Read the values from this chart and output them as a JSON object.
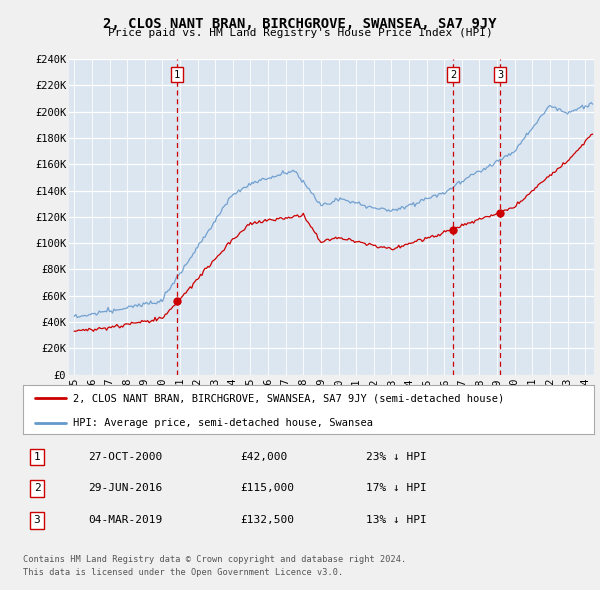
{
  "title": "2, CLOS NANT BRAN, BIRCHGROVE, SWANSEA, SA7 9JY",
  "subtitle": "Price paid vs. HM Land Registry's House Price Index (HPI)",
  "background_color": "#dce6f1",
  "grid_color": "#ffffff",
  "ylim": [
    0,
    240000
  ],
  "yticks": [
    0,
    20000,
    40000,
    60000,
    80000,
    100000,
    120000,
    140000,
    160000,
    180000,
    200000,
    220000,
    240000
  ],
  "xstart_year": 1995,
  "xend_year": 2024,
  "transactions": [
    {
      "label": "1",
      "year": 2000.82,
      "price": 42000
    },
    {
      "label": "2",
      "year": 2016.49,
      "price": 115000
    },
    {
      "label": "3",
      "year": 2019.17,
      "price": 132500
    }
  ],
  "vline_color": "#cc0000",
  "marker_color": "#cc0000",
  "hpi_color": "#6699cc",
  "price_color": "#cc0000",
  "legend_label_price": "2, CLOS NANT BRAN, BIRCHGROVE, SWANSEA, SA7 9JY (semi-detached house)",
  "legend_label_hpi": "HPI: Average price, semi-detached house, Swansea",
  "footer_line1": "Contains HM Land Registry data © Crown copyright and database right 2024.",
  "footer_line2": "This data is licensed under the Open Government Licence v3.0.",
  "table_rows": [
    [
      "1",
      "27-OCT-2000",
      "£42,000",
      "23% ↓ HPI"
    ],
    [
      "2",
      "29-JUN-2016",
      "£115,000",
      "17% ↓ HPI"
    ],
    [
      "3",
      "04-MAR-2019",
      "£132,500",
      "13% ↓ HPI"
    ]
  ],
  "fig_bg": "#f0f0f0"
}
